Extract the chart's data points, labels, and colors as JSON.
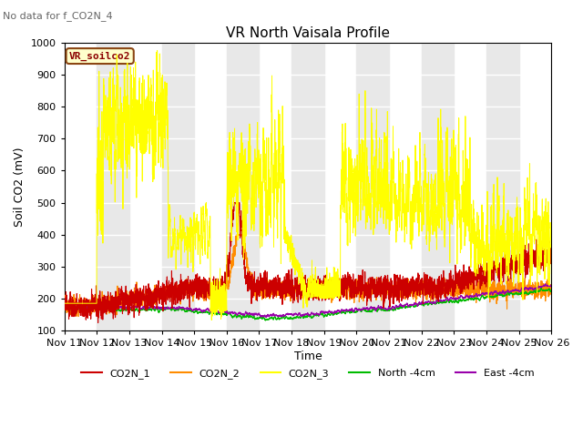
{
  "title": "VR North Vaisala Profile",
  "subtitle": "No data for f_CO2N_4",
  "ylabel": "Soil CO2 (mV)",
  "xlabel": "Time",
  "ylim": [
    100,
    1000
  ],
  "tick_labels": [
    "Nov 11",
    "Nov 12",
    "Nov 13",
    "Nov 14",
    "Nov 15",
    "Nov 16",
    "Nov 17",
    "Nov 18",
    "Nov 19",
    "Nov 20",
    "Nov 21",
    "Nov 22",
    "Nov 23",
    "Nov 24",
    "Nov 25",
    "Nov 26"
  ],
  "legend_label": "VR_soilco2",
  "legend_bg": "#FFFFCC",
  "legend_border": "#8B4513",
  "line_colors": {
    "CO2N_1": "#CC0000",
    "CO2N_2": "#FF8C00",
    "CO2N_3": "#FFFF00",
    "North_4cm": "#00BB00",
    "East_4cm": "#9900AA"
  },
  "band_color": "#E8E8E8",
  "plot_bg": "#FFFFFF",
  "seed": 42
}
